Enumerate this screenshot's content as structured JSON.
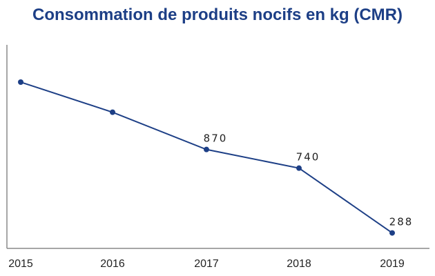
{
  "chart_data": {
    "type": "line",
    "title": "Consommation de produits nocifs en kg (CMR)",
    "categories": [
      "2015",
      "2016",
      "2017",
      "2018",
      "2019"
    ],
    "series": [
      {
        "values": [
          1340,
          1130,
          870,
          740,
          288
        ]
      }
    ],
    "data_labels": [
      "",
      "",
      "870",
      "740",
      "288"
    ],
    "xlabel": "",
    "ylabel": "",
    "ylim": [
      180,
      1600
    ],
    "grid": false,
    "y_axis_tick_labels": false,
    "line_color": "#1d3f86",
    "title_color": "#1d3f86",
    "axis_color": "#888888"
  }
}
